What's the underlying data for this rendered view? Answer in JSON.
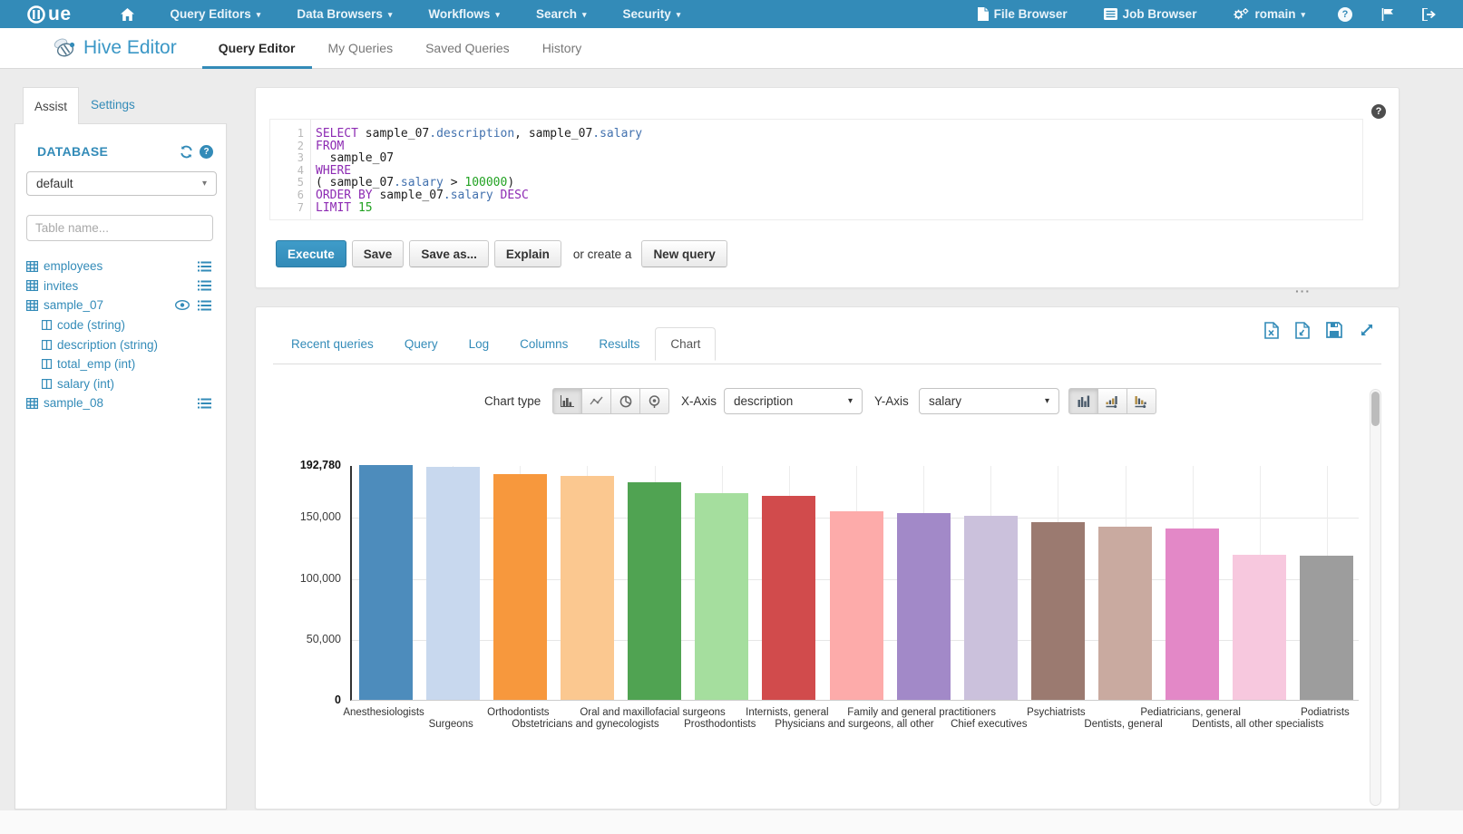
{
  "topnav": {
    "menus": [
      {
        "label": "Query Editors"
      },
      {
        "label": "Data Browsers"
      },
      {
        "label": "Workflows"
      },
      {
        "label": "Search"
      },
      {
        "label": "Security"
      }
    ],
    "file_browser": "File Browser",
    "job_browser": "Job Browser",
    "user": "romain"
  },
  "subnav": {
    "app_title": "Hive Editor",
    "tabs": [
      {
        "label": "Query Editor",
        "active": true
      },
      {
        "label": "My Queries"
      },
      {
        "label": "Saved Queries"
      },
      {
        "label": "History"
      }
    ]
  },
  "assist": {
    "tab_assist": "Assist",
    "tab_settings": "Settings",
    "database_label": "DATABASE",
    "database_value": "default",
    "table_filter_placeholder": "Table name...",
    "tables": [
      {
        "name": "employees",
        "menu": true
      },
      {
        "name": "invites",
        "menu": true
      },
      {
        "name": "sample_07",
        "menu": true,
        "eye": true,
        "columns": [
          {
            "name": "code",
            "type": "(string)"
          },
          {
            "name": "description",
            "type": "(string)"
          },
          {
            "name": "total_emp",
            "type": "(int)"
          },
          {
            "name": "salary",
            "type": "(int)"
          }
        ]
      },
      {
        "name": "sample_08",
        "menu": true
      }
    ]
  },
  "editor": {
    "lines": [
      {
        "no": "1",
        "segs": [
          [
            "SELECT",
            "kw"
          ],
          [
            " sample_07",
            "pl"
          ],
          [
            ".description",
            "attr"
          ],
          [
            ", sample_07",
            "pl"
          ],
          [
            ".salary",
            "attr"
          ]
        ]
      },
      {
        "no": "2",
        "segs": [
          [
            "FROM",
            "kw"
          ]
        ]
      },
      {
        "no": "3",
        "segs": [
          [
            "  sample_07",
            "pl"
          ]
        ]
      },
      {
        "no": "4",
        "segs": [
          [
            "WHERE",
            "kw"
          ]
        ]
      },
      {
        "no": "5",
        "segs": [
          [
            "( sample_07",
            "pl"
          ],
          [
            ".salary",
            "attr"
          ],
          [
            " > ",
            "pl"
          ],
          [
            "100000",
            "num"
          ],
          [
            ")",
            "pl"
          ]
        ]
      },
      {
        "no": "6",
        "segs": [
          [
            "ORDER BY",
            "kw"
          ],
          [
            " sample_07",
            "pl"
          ],
          [
            ".salary",
            "attr"
          ],
          [
            " ",
            "pl"
          ],
          [
            "DESC",
            "kw"
          ]
        ]
      },
      {
        "no": "7",
        "segs": [
          [
            "LIMIT",
            "kw"
          ],
          [
            " ",
            "pl"
          ],
          [
            "15",
            "num"
          ]
        ]
      }
    ]
  },
  "actions": {
    "execute": "Execute",
    "save": "Save",
    "save_as": "Save as...",
    "explain": "Explain",
    "or_create_a": "or create a",
    "new_query": "New query"
  },
  "icons": {
    "ellipsis": "···",
    "caret_down": "▾"
  },
  "results": {
    "tabs": [
      {
        "label": "Recent queries"
      },
      {
        "label": "Query"
      },
      {
        "label": "Log"
      },
      {
        "label": "Columns"
      },
      {
        "label": "Results"
      },
      {
        "label": "Chart",
        "active": true
      }
    ]
  },
  "chart_controls": {
    "chart_type_label": "Chart type",
    "x_axis_label": "X-Axis",
    "x_axis_value": "description",
    "y_axis_label": "Y-Axis",
    "y_axis_value": "salary"
  },
  "chart_data": {
    "type": "bar",
    "title": "",
    "xlabel": "description",
    "ylabel": "salary",
    "categories": [
      "Anesthesiologists",
      "Surgeons",
      "Orthodontists",
      "Obstetricians and gynecologists",
      "Oral and maxillofacial surgeons",
      "Prosthodontists",
      "Internists, general",
      "Physicians and surgeons, all other",
      "Family and general practitioners",
      "Chief executives",
      "Psychiatrists",
      "Dentists, general",
      "Pediatricians, general",
      "Dentists, all other specialists",
      "Podiatrists"
    ],
    "values": [
      192780,
      191410,
      185340,
      183600,
      178440,
      169810,
      167270,
      155150,
      153640,
      151370,
      146150,
      142070,
      140690,
      118820,
      118500
    ],
    "ylim": [
      0,
      192780
    ],
    "yticks": [
      {
        "value": 192780,
        "label": "192,780",
        "bold": true
      },
      {
        "value": 150000,
        "label": "150,000"
      },
      {
        "value": 100000,
        "label": "100,000"
      },
      {
        "value": 50000,
        "label": "50,000"
      },
      {
        "value": 0,
        "label": "0",
        "bold": true
      }
    ],
    "bar_colors": [
      "#4d8cbc",
      "#c8d8ee",
      "#f7983d",
      "#fbc890",
      "#50a352",
      "#a5de9e",
      "#d14b4c",
      "#fdabaa",
      "#a289c8",
      "#cbc1dc",
      "#9b7a70",
      "#c9aaa0",
      "#e388c7",
      "#f7c8de",
      "#9d9d9d"
    ],
    "grid": true,
    "legend": "none"
  },
  "colors": {
    "brand": "#338bb8",
    "keyword": "#8d2bb3",
    "attribute": "#4271ae",
    "number": "#22a222"
  }
}
